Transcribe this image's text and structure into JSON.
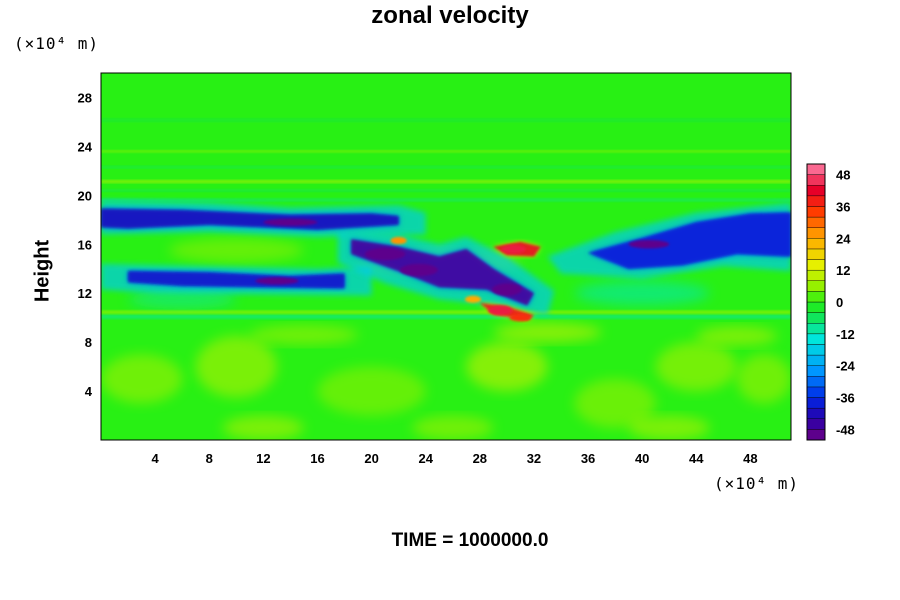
{
  "chart_data": {
    "type": "heatmap",
    "title": "zonal velocity",
    "xlabel": "",
    "ylabel": "Height",
    "x_unit": "(×10⁴ m)",
    "y_unit": "(×10⁴ m)",
    "footer": "TIME = 1000000.0",
    "xlim": [
      0,
      51
    ],
    "ylim": [
      0,
      30
    ],
    "x_ticks": [
      4,
      8,
      12,
      16,
      20,
      24,
      28,
      32,
      36,
      40,
      44,
      48
    ],
    "y_ticks": [
      4,
      8,
      12,
      16,
      20,
      24,
      28
    ],
    "colorbar_ticks": [
      48,
      36,
      24,
      12,
      0,
      -12,
      -24,
      -36,
      -48
    ],
    "colorbar_range": [
      -52,
      52
    ],
    "features": [
      {
        "name": "upper jet core",
        "x": [
          0,
          22
        ],
        "y": [
          17.3,
          18.9
        ],
        "value": -42
      },
      {
        "name": "lower jet core",
        "x": [
          2,
          18
        ],
        "y": [
          12.5,
          13.8
        ],
        "value": -40
      },
      {
        "name": "diagonal trough",
        "x": [
          18,
          32
        ],
        "y": [
          11,
          16.5
        ],
        "value": -48
      },
      {
        "name": "eastern trough",
        "x": [
          36,
          51
        ],
        "y": [
          14,
          18.5
        ],
        "value": -38
      },
      {
        "name": "positive cell A",
        "x": [
          29,
          32.5
        ],
        "y": [
          15,
          16
        ],
        "value": 42
      },
      {
        "name": "positive cell B",
        "x": [
          28,
          32
        ],
        "y": [
          10,
          11.2
        ],
        "value": 40
      },
      {
        "name": "background",
        "x": [
          0,
          51
        ],
        "y": [
          0,
          30
        ],
        "value": 0
      }
    ]
  }
}
